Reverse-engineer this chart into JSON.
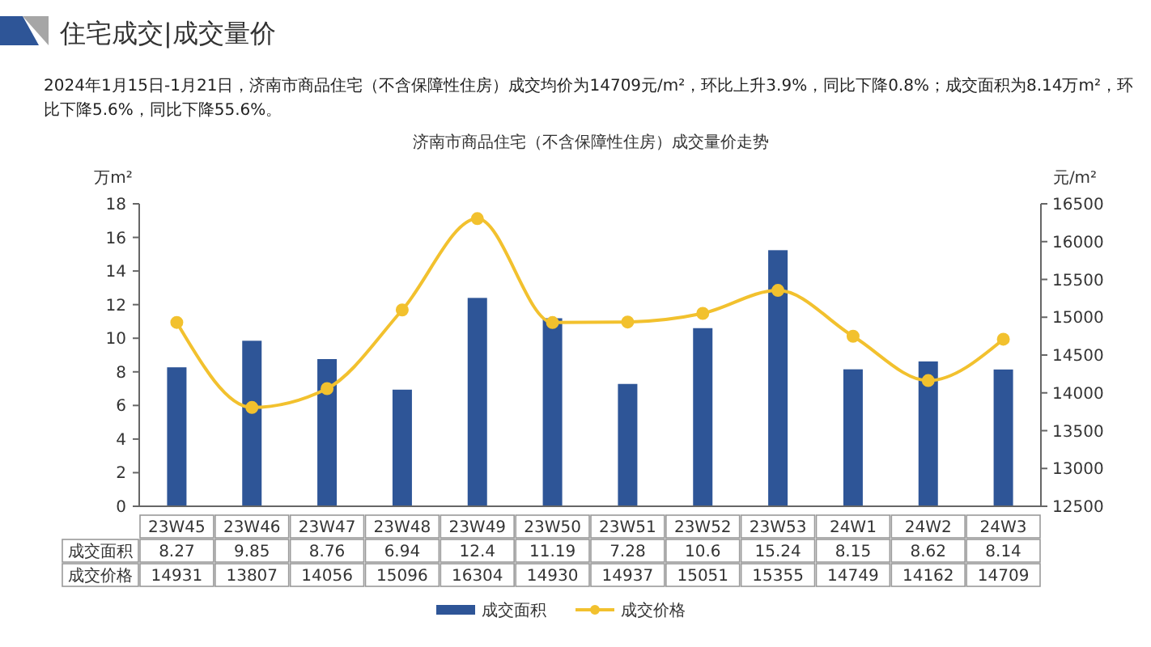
{
  "chart_data": {
    "type": "bar",
    "title": "济南市商品住宅（不含保障性住房）成交量价走势",
    "annotations": [
      "住宅成交|成交量价",
      "2024年1月15日-1月21日，济南市商品住宅（不含保障性住房）成交均价为14709元/m²，环比上升3.9%，同比下降0.8%；成交面积为8.14万m²，环比下降5.6%，同比下降55.6%。"
    ],
    "categories": [
      "23W45",
      "23W46",
      "23W47",
      "23W48",
      "23W49",
      "23W50",
      "23W51",
      "23W52",
      "23W53",
      "24W1",
      "24W2",
      "24W3"
    ],
    "series": [
      {
        "name": "成交面积",
        "color": "#2e5597",
        "values": [
          8.27,
          9.85,
          8.76,
          6.94,
          12.4,
          11.19,
          7.28,
          10.6,
          15.24,
          8.15,
          8.62,
          8.14
        ]
      },
      {
        "name": "成交价格",
        "type": "line",
        "axis": "y2",
        "color": "#f2c12e",
        "values": [
          14931,
          13807,
          14056,
          15096,
          16304,
          14930,
          14937,
          15051,
          15355,
          14749,
          14162,
          14709
        ]
      }
    ],
    "ylabel": "万m²",
    "y2label": "元/m²",
    "ylim": [
      0,
      18
    ],
    "yticks": [
      0,
      2,
      4,
      6,
      8,
      10,
      12,
      14,
      16,
      18
    ],
    "y2lim": [
      12500,
      16500
    ],
    "y2ticks": [
      12500,
      13000,
      13500,
      14000,
      14500,
      15000,
      15500,
      16000,
      16500
    ],
    "marker": "circle",
    "legend": "bottom",
    "data_labels": true
  }
}
